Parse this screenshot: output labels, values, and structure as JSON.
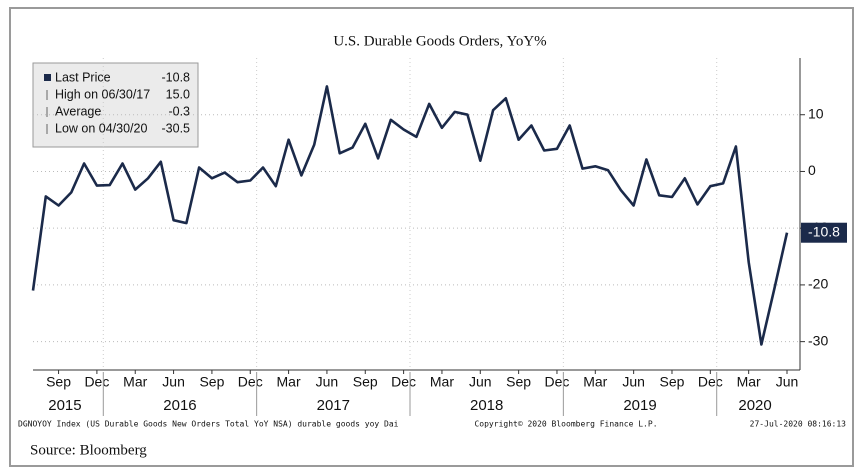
{
  "chart_data": {
    "type": "line",
    "title": "U.S. Durable Goods Orders, YoY%",
    "categories": [
      null,
      null,
      "Sep",
      null,
      null,
      "Dec",
      null,
      null,
      "Mar",
      null,
      null,
      "Jun",
      null,
      null,
      "Sep",
      null,
      null,
      "Dec",
      null,
      null,
      "Mar",
      null,
      null,
      "Jun",
      null,
      null,
      "Sep",
      null,
      null,
      "Dec",
      null,
      null,
      "Mar",
      null,
      null,
      "Jun",
      null,
      null,
      "Sep",
      null,
      null,
      "Dec",
      null,
      null,
      "Mar",
      null,
      null,
      "Jun",
      null,
      null,
      "Sep",
      null,
      null,
      "Dec",
      null,
      null,
      "Mar",
      null,
      null,
      "Jun"
    ],
    "years": [
      "2015",
      "2016",
      "2017",
      "2018",
      "2019",
      "2020"
    ],
    "values": [
      -21,
      -4.4,
      -6,
      -3.7,
      1.4,
      -2.5,
      -2.4,
      1.4,
      -3.2,
      -1.2,
      1.7,
      -8.6,
      -9.1,
      0.7,
      -1.2,
      -0.2,
      -1.9,
      -1.6,
      0.7,
      -2.6,
      5.6,
      -0.7,
      4.7,
      15,
      3.2,
      4.2,
      8.4,
      2.3,
      9.1,
      7.4,
      6.1,
      11.9,
      7.7,
      10.5,
      10,
      1.9,
      10.8,
      12.9,
      5.6,
      8.1,
      3.7,
      4,
      8.1,
      0.5,
      0.9,
      0.2,
      -3.3,
      -6,
      2.1,
      -4.2,
      -4.5,
      -1.2,
      -5.8,
      -2.6,
      -2.1,
      4.4,
      -16,
      -30.5,
      -20.8,
      -10.8
    ],
    "color": "#1b2a4a",
    "ylim": [
      -35,
      20
    ],
    "yticks": [
      10,
      0,
      -10,
      -20,
      -30
    ],
    "grid": true,
    "info_box": [
      {
        "label": "Last Price",
        "value": "-10.8"
      },
      {
        "label": "High on 06/30/17",
        "value": "15.0"
      },
      {
        "label": "Average",
        "value": "-0.3"
      },
      {
        "label": "Low on 04/30/20",
        "value": "-30.5"
      }
    ],
    "footer_left": "DGNOYOY Index (US Durable Goods New Orders Total YoY NSA) durable goods yoy  Dai",
    "footer_center": "Copyright© 2020 Bloomberg Finance L.P.",
    "footer_right": "27-Jul-2020 08:16:13",
    "source": "Source: Bloomberg"
  }
}
